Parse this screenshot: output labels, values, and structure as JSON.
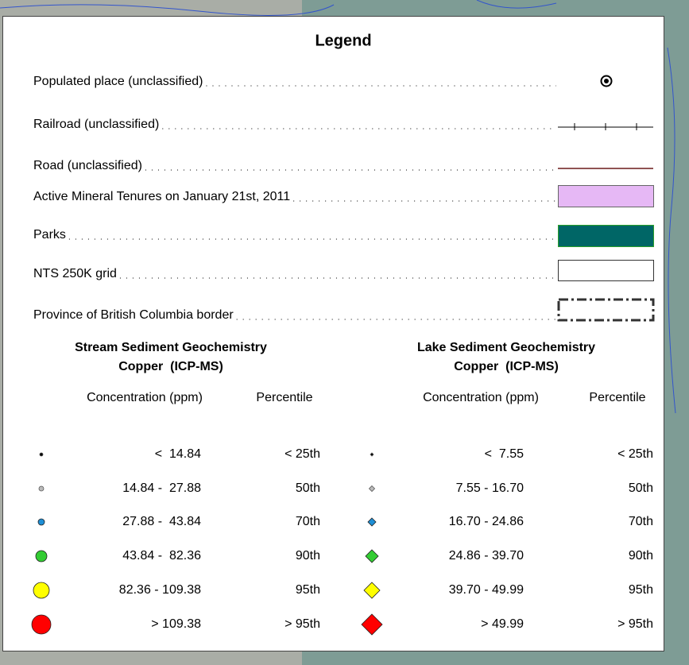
{
  "legend": {
    "title": "Legend",
    "items": [
      {
        "label": "Populated place (unclassified)"
      },
      {
        "label": "Railroad (unclassified)"
      },
      {
        "label": "Road (unclassified)"
      },
      {
        "label": "Active Mineral Tenures on January 21st, 2011"
      },
      {
        "label": "Parks"
      },
      {
        "label": "NTS 250K grid"
      },
      {
        "label": "Province of British Columbia border"
      }
    ],
    "tables": [
      {
        "title": "Stream Sediment Geochemistry",
        "subtitle": "Copper  (ICP-MS)",
        "headers": [
          "Concentration (ppm)",
          "Percentile"
        ],
        "rows": [
          [
            "<  14.84",
            "< 25th"
          ],
          [
            "14.84 -  27.88",
            "50th"
          ],
          [
            "27.88 -  43.84",
            "70th"
          ],
          [
            "43.84 -  82.36",
            "90th"
          ],
          [
            "82.36 - 109.38",
            "95th"
          ],
          [
            "> 109.38",
            "> 95th"
          ]
        ]
      },
      {
        "title": "Lake Sediment Geochemistry",
        "subtitle": "Copper  (ICP-MS)",
        "headers": [
          "Concentration (ppm)",
          "Percentile"
        ],
        "rows": [
          [
            "<  7.55",
            "< 25th"
          ],
          [
            "7.55 - 16.70",
            "50th"
          ],
          [
            "16.70 - 24.86",
            "70th"
          ],
          [
            "24.86 - 39.70",
            "90th"
          ],
          [
            "39.70 - 49.99",
            "95th"
          ],
          [
            "> 49.99",
            "> 95th"
          ]
        ]
      }
    ]
  }
}
